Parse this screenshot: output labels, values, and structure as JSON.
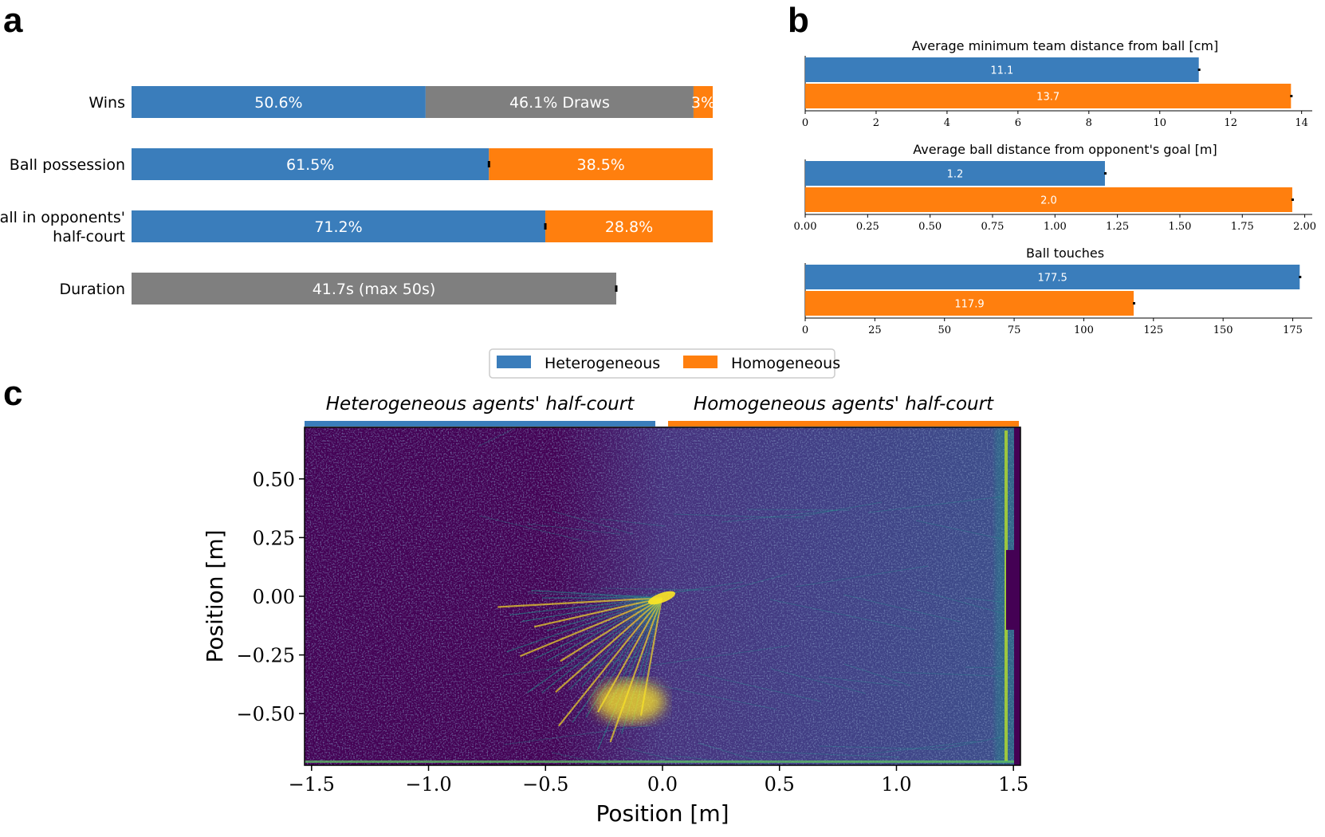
{
  "panel_labels": {
    "a": "a",
    "b": "b",
    "c": "c"
  },
  "colors": {
    "heterogeneous": "#3a7dbb",
    "homogeneous": "#ff7f0e",
    "draws": "#7f7f7f",
    "heatmap_bg": "#440154",
    "heatmap_mid": "#3b528b",
    "heatmap_teal": "#21918c",
    "heatmap_hot": "#fde725"
  },
  "chart_data": [
    {
      "id": "a",
      "type": "bar",
      "orientation": "horizontal-stacked",
      "xlim": [
        0,
        100
      ],
      "rows": [
        {
          "label_lines": [
            "Wins"
          ],
          "segments": [
            {
              "series": "Heterogeneous",
              "value": 50.6,
              "text": "50.6%"
            },
            {
              "series": "Draws",
              "value": 46.1,
              "text": "46.1% Draws"
            },
            {
              "series": "Homogeneous",
              "value": 3.3,
              "text": "3%"
            }
          ]
        },
        {
          "label_lines": [
            "Ball possession"
          ],
          "error_at": 61.5,
          "segments": [
            {
              "series": "Heterogeneous",
              "value": 61.5,
              "text": "61.5%"
            },
            {
              "series": "Homogeneous",
              "value": 38.5,
              "text": "38.5%"
            }
          ]
        },
        {
          "label_lines": [
            "Ball in opponents'",
            "half-court"
          ],
          "error_at": 71.2,
          "segments": [
            {
              "series": "Heterogeneous",
              "value": 71.2,
              "text": "71.2%"
            },
            {
              "series": "Homogeneous",
              "value": 28.8,
              "text": "28.8%"
            }
          ]
        },
        {
          "label_lines": [
            "Duration"
          ],
          "error_at": 83.4,
          "segments": [
            {
              "series": "Draws",
              "value": 83.4,
              "text": "41.7s (max 50s)"
            }
          ]
        }
      ]
    },
    {
      "id": "b1",
      "type": "bar",
      "orientation": "horizontal",
      "title": "Average minimum team distance from ball [cm]",
      "xlim": [
        0,
        14.3
      ],
      "ticks": [
        0,
        2,
        4,
        6,
        8,
        10,
        12,
        14
      ],
      "tick_labels": [
        "0",
        "2",
        "4",
        "6",
        "8",
        "10",
        "12",
        "14"
      ],
      "series": [
        {
          "name": "Heterogeneous",
          "values": [
            11.1
          ],
          "labels": [
            "11.1"
          ]
        },
        {
          "name": "Homogeneous",
          "values": [
            13.7
          ],
          "labels": [
            "13.7"
          ]
        }
      ]
    },
    {
      "id": "b2",
      "type": "bar",
      "orientation": "horizontal",
      "title": "Average ball distance from opponent's goal [m]",
      "xlim": [
        0,
        2.03
      ],
      "ticks": [
        0,
        0.25,
        0.5,
        0.75,
        1.0,
        1.25,
        1.5,
        1.75,
        2.0
      ],
      "tick_labels": [
        "0.00",
        "0.25",
        "0.50",
        "0.75",
        "1.00",
        "1.25",
        "1.50",
        "1.75",
        "2.00"
      ],
      "series": [
        {
          "name": "Heterogeneous",
          "values": [
            1.2
          ],
          "labels": [
            "1.2"
          ]
        },
        {
          "name": "Homogeneous",
          "values": [
            1.95
          ],
          "labels": [
            "2.0"
          ]
        }
      ]
    },
    {
      "id": "b3",
      "type": "bar",
      "orientation": "horizontal",
      "title": "Ball touches",
      "xlim": [
        0,
        182
      ],
      "ticks": [
        0,
        25,
        50,
        75,
        100,
        125,
        150,
        175
      ],
      "tick_labels": [
        "0",
        "25",
        "50",
        "75",
        "100",
        "125",
        "150",
        "175"
      ],
      "series": [
        {
          "name": "Heterogeneous",
          "values": [
            177.5
          ],
          "labels": [
            "177.5"
          ]
        },
        {
          "name": "Homogeneous",
          "values": [
            117.9
          ],
          "labels": [
            "117.9"
          ]
        }
      ]
    },
    {
      "id": "c",
      "type": "heatmap",
      "xlabel": "Position [m]",
      "ylabel": "Position [m]",
      "xlim": [
        -1.53,
        1.53
      ],
      "ylim": [
        -0.72,
        0.72
      ],
      "xticks": [
        -1.5,
        -1.0,
        -0.5,
        0.0,
        0.5,
        1.0,
        1.5
      ],
      "xtick_labels": [
        "−1.5",
        "−1.0",
        "−0.5",
        "0.0",
        "0.5",
        "1.0",
        "1.5"
      ],
      "yticks": [
        0.5,
        0.25,
        0.0,
        -0.25,
        -0.5
      ],
      "ytick_labels": [
        "0.50",
        "0.25",
        "0.00",
        "−0.25",
        "−0.50"
      ],
      "half_court_labels": [
        "Heterogeneous agents' half-court",
        "Homogeneous agents' half-court"
      ]
    }
  ],
  "legend": {
    "items": [
      "Heterogeneous",
      "Homogeneous"
    ]
  }
}
